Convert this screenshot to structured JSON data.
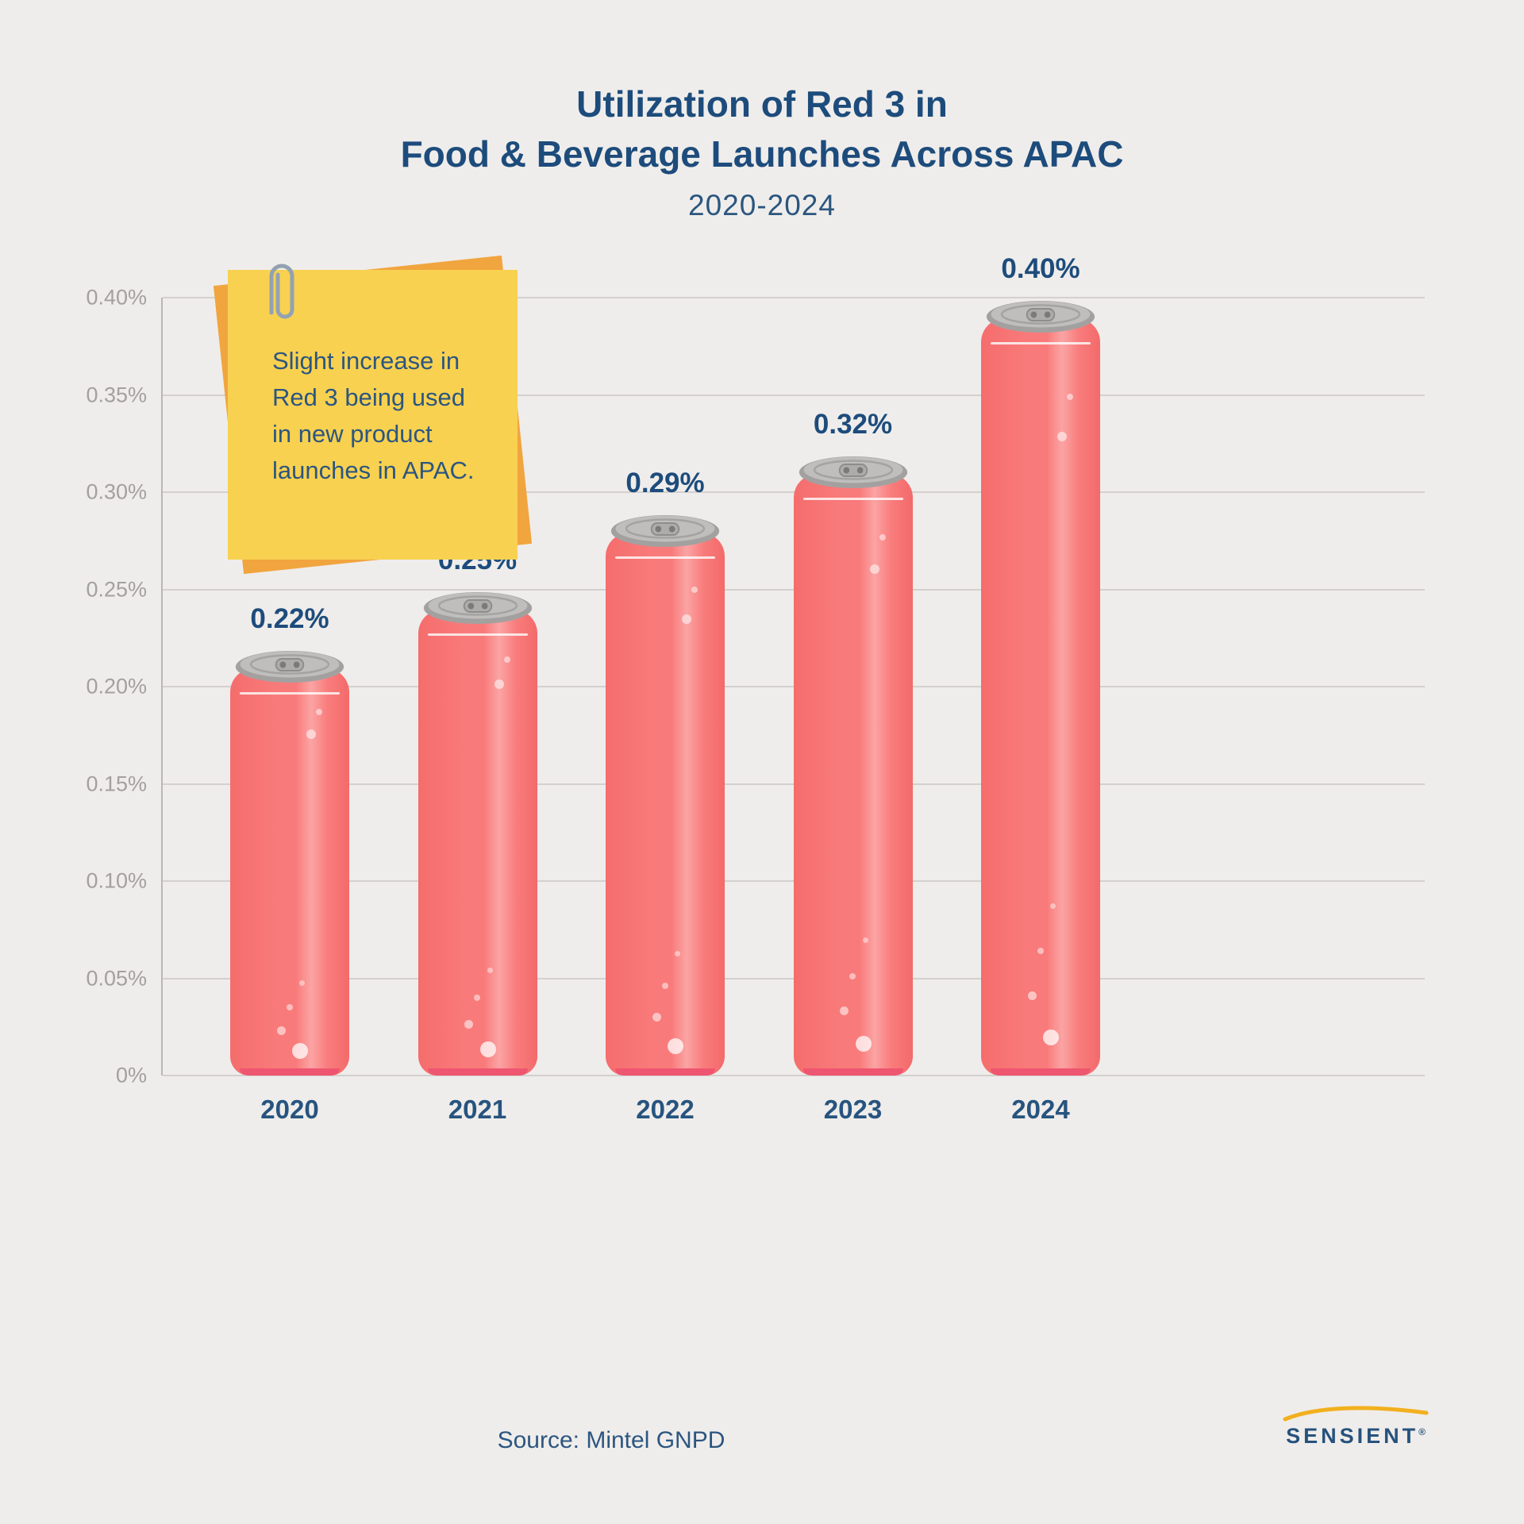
{
  "title": {
    "line1": "Utilization of Red 3 in",
    "line2": "Food & Beverage Launches Across APAC"
  },
  "subtitle": "2020-2024",
  "note": {
    "lines": [
      "Slight increase in",
      "Red 3 being used",
      "in new product",
      "launches in APAC."
    ]
  },
  "source": {
    "text": "Source: Mintel GNPD"
  },
  "logo": {
    "text": "SENSIENT",
    "registered": "®"
  },
  "chart_data": {
    "type": "bar",
    "title": "Utilization of Red 3 in Food & Beverage Launches Across APAC",
    "subtitle": "2020-2024",
    "categories": [
      "2020",
      "2021",
      "2022",
      "2023",
      "2024"
    ],
    "values": [
      0.22,
      0.25,
      0.29,
      0.32,
      0.4
    ],
    "value_labels": [
      "0.22%",
      "0.25%",
      "0.29%",
      "0.32%",
      "0.40%"
    ],
    "xlabel": "",
    "ylabel": "",
    "ylim": [
      0,
      0.4
    ],
    "yticks": [
      "0%",
      "0.05%",
      "0.10%",
      "0.15%",
      "0.20%",
      "0.25%",
      "0.30%",
      "0.35%",
      "0.40%"
    ],
    "grid": true,
    "legend": "none",
    "bar_style": "soda-can",
    "colors": {
      "background": "#EFEDEB",
      "accent_blue": "#1D4C7C",
      "can_body": "#F97A7A",
      "can_highlight": "#FBA4A4",
      "can_bottom": "#EE5570",
      "can_lid": "#B5B3B2",
      "note_yellow": "#F8D150",
      "note_orange": "#F1A53E",
      "gridline": "#D3D0CE",
      "logo_yellow": "#F2B01E"
    }
  }
}
